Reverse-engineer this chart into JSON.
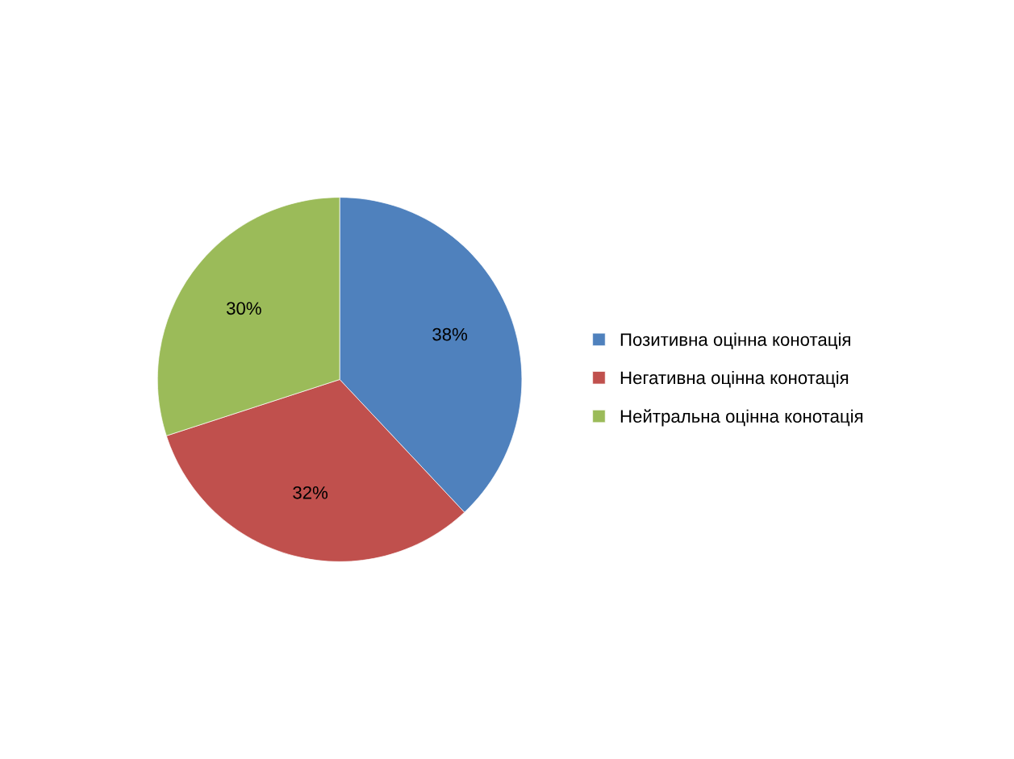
{
  "chart_data": {
    "type": "pie",
    "categories": [
      "Позитивна оцінна конотація",
      "Негативна оцінна конотація",
      "Нейтральна оцінна конотація"
    ],
    "values": [
      38,
      32,
      30
    ],
    "value_labels": [
      "38%",
      "32%",
      "30%"
    ],
    "colors": [
      "#4f81bd",
      "#c0504d",
      "#9bbb59"
    ],
    "legend": "right"
  }
}
